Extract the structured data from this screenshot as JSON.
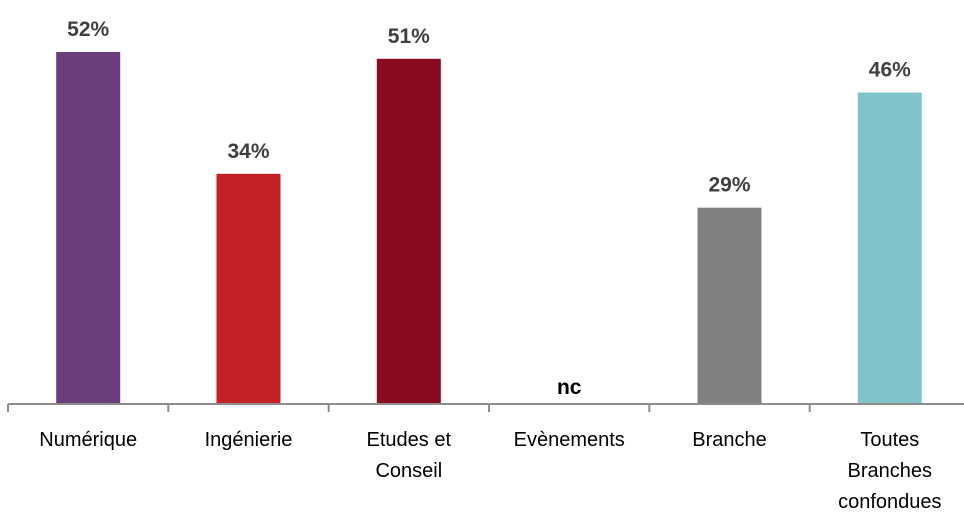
{
  "chart_data": {
    "type": "bar",
    "categories": [
      [
        "Numérique"
      ],
      [
        "Ingénierie"
      ],
      [
        "Etudes et",
        "Conseil"
      ],
      [
        "Evènements"
      ],
      [
        "Branche"
      ],
      [
        "Toutes",
        "Branches",
        "confondues"
      ]
    ],
    "values": [
      52,
      34,
      51,
      null,
      29,
      46
    ],
    "data_labels": [
      "52%",
      "34%",
      "51%",
      "nc",
      "29%",
      "46%"
    ],
    "colors": [
      "#6b3d7b",
      "#c32126",
      "#8a0b1f",
      "#000000",
      "#808080",
      "#80c3c8"
    ],
    "ylim": [
      0,
      52
    ],
    "grid": false,
    "axis_color": "#8c8c8c",
    "label_color": "#404040"
  }
}
